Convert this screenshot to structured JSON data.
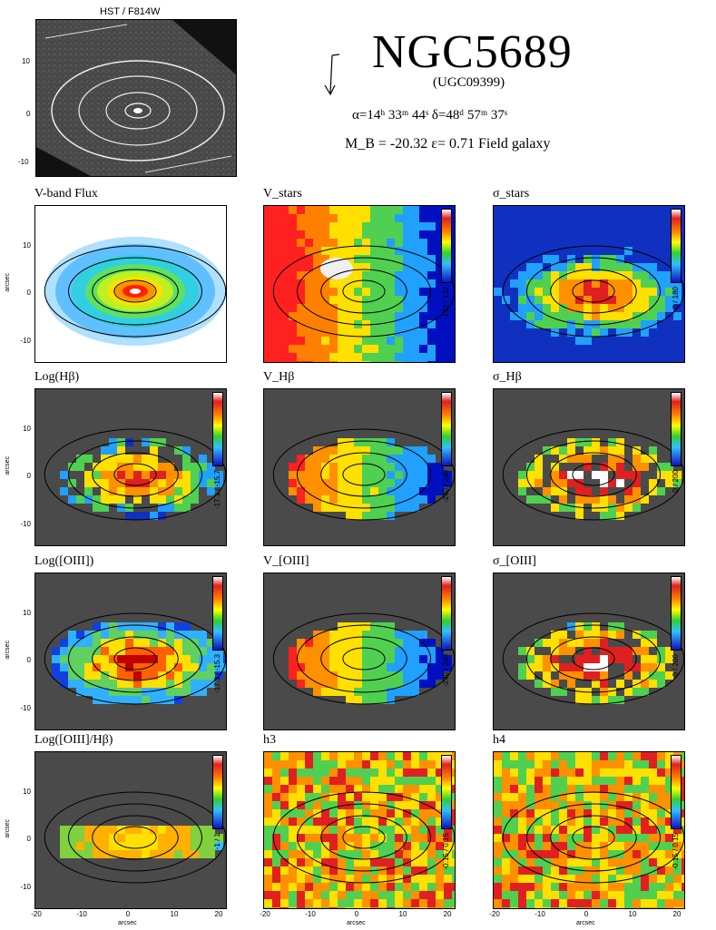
{
  "header": {
    "hst_label": "HST / F814W",
    "galaxy_name": "NGC5689",
    "alt_name": "(UGC09399)",
    "coordinates": "α=14ʰ 33ᵐ 44ˢ    δ=48ᵈ 57ᵐ 37ˢ",
    "properties": "M_B = -20.32    ε= 0.71    Field galaxy"
  },
  "axes": {
    "yticks": [
      "10",
      "0",
      "-10"
    ],
    "xticks": [
      "-20",
      "-10",
      "0",
      "10",
      "20"
    ],
    "ylabel": "arcsec",
    "xlabel": "arcsec"
  },
  "panels": [
    {
      "title": "V-band Flux",
      "range": "",
      "style": "flux",
      "bg": "#ffffff",
      "cbar": false
    },
    {
      "title": "V_stars",
      "range": "-132 / 132",
      "style": "vel",
      "bg": "#ffffff",
      "cbar": true
    },
    {
      "title": "σ_stars",
      "range": "0 / 180",
      "style": "sig",
      "bg": "#ffffff",
      "cbar": true
    },
    {
      "title": "Log(Hβ)",
      "range": "-17.1 / -15.7",
      "style": "emflux",
      "bg": "#4a4a4a",
      "cbar": true
    },
    {
      "title": "V_Hβ",
      "range": "-240 / 240",
      "style": "velgas",
      "bg": "#4a4a4a",
      "cbar": true
    },
    {
      "title": "σ_Hβ",
      "range": "0 / 200",
      "style": "siggas",
      "bg": "#4a4a4a",
      "cbar": true
    },
    {
      "title": "Log([OIII])",
      "range": "-17.3 / -15.3",
      "style": "oiii",
      "bg": "#4a4a4a",
      "cbar": true
    },
    {
      "title": "V_[OIII]",
      "range": "-240 / 240",
      "style": "velgas",
      "bg": "#4a4a4a",
      "cbar": true
    },
    {
      "title": "σ_[OIII]",
      "range": "0 / 200",
      "style": "siggas",
      "bg": "#4a4a4a",
      "cbar": true
    },
    {
      "title": "Log([OIII]/Hβ)",
      "range": "-1 / 1",
      "style": "ratio",
      "bg": "#4a4a4a",
      "cbar": true
    },
    {
      "title": "h3",
      "range": "-0.15 / 0.15",
      "style": "h3",
      "bg": "#e8e8a0",
      "cbar": true
    },
    {
      "title": "h4",
      "range": "-0.15 / 0.15",
      "style": "h4",
      "bg": "#e8e8a0",
      "cbar": true
    }
  ]
}
